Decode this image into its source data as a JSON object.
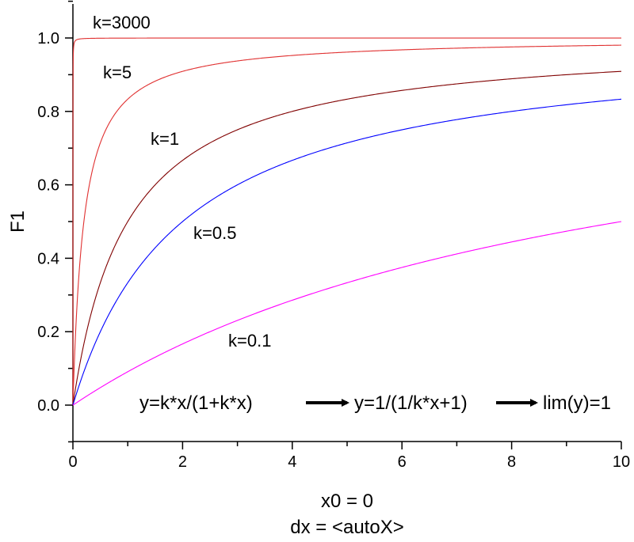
{
  "chart_data": {
    "type": "line",
    "title": "",
    "xlabel": "x0 = 0",
    "xlabel_line2": "dx = <autoX>",
    "ylabel": "F1",
    "xlim": [
      0,
      10
    ],
    "ylim": [
      -0.1,
      1.1
    ],
    "x_ticks": [
      0,
      2,
      4,
      6,
      8,
      10
    ],
    "x_tick_labels": [
      "0",
      "2",
      "4",
      "6",
      "8",
      "10"
    ],
    "y_ticks": [
      0.0,
      0.2,
      0.4,
      0.6,
      0.8,
      1.0
    ],
    "y_tick_labels": [
      "0.0",
      "0.2",
      "0.4",
      "0.6",
      "0.8",
      "1.0"
    ],
    "grid": false,
    "formula": {
      "part1": "y=k*x/(1+k*x)",
      "part2": "y=1/(1/k*x+1)",
      "part3": "lim(y)=1"
    },
    "series": [
      {
        "name": "k=3000",
        "k": 3000,
        "color": "#e03030",
        "label": "k=3000"
      },
      {
        "name": "k=5",
        "k": 5,
        "color": "#e03030",
        "label": "k=5"
      },
      {
        "name": "k=1",
        "k": 1,
        "color": "#800000",
        "label": "k=1"
      },
      {
        "name": "k=0.5",
        "k": 0.5,
        "color": "#0000ff",
        "label": "k=0.5"
      },
      {
        "name": "k=0.1",
        "k": 0.1,
        "color": "#ff00ff",
        "label": "k=0.1"
      }
    ]
  }
}
